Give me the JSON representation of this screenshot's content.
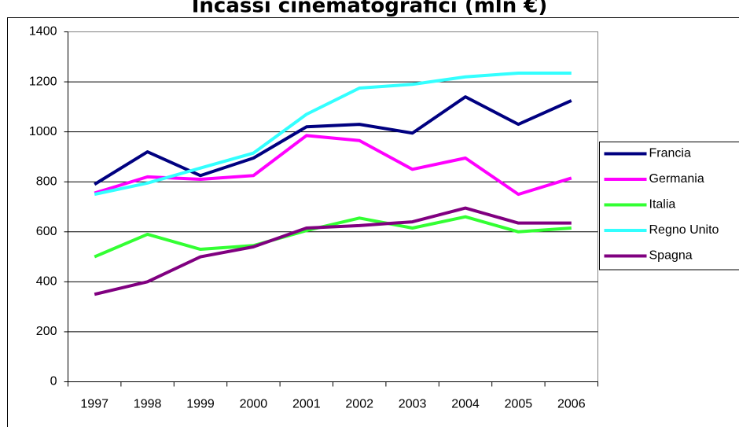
{
  "chart_data": {
    "type": "line",
    "title": "Incassi cinematografici (mln €)",
    "categories": [
      "1997",
      "1998",
      "1999",
      "2000",
      "2001",
      "2002",
      "2003",
      "2004",
      "2005",
      "2006"
    ],
    "series": [
      {
        "name": "Francia",
        "color": "#000080",
        "values": [
          790,
          920,
          825,
          895,
          1020,
          1030,
          995,
          1140,
          1030,
          1125
        ]
      },
      {
        "name": "Germania",
        "color": "#ff00ff",
        "values": [
          755,
          820,
          810,
          825,
          985,
          965,
          850,
          895,
          750,
          815
        ]
      },
      {
        "name": "Italia",
        "color": "#33ff33",
        "values": [
          500,
          590,
          530,
          545,
          605,
          655,
          615,
          660,
          600,
          615
        ]
      },
      {
        "name": "Regno Unito",
        "color": "#33ffff",
        "values": [
          750,
          795,
          855,
          915,
          1070,
          1175,
          1190,
          1220,
          1235,
          1235
        ]
      },
      {
        "name": "Spagna",
        "color": "#800080",
        "values": [
          350,
          400,
          500,
          540,
          615,
          625,
          640,
          695,
          635,
          635
        ]
      }
    ],
    "ylim": [
      0,
      1400
    ],
    "yticks": [
      0,
      200,
      400,
      600,
      800,
      1000,
      1200,
      1400
    ],
    "grid": true,
    "legend": "right"
  }
}
